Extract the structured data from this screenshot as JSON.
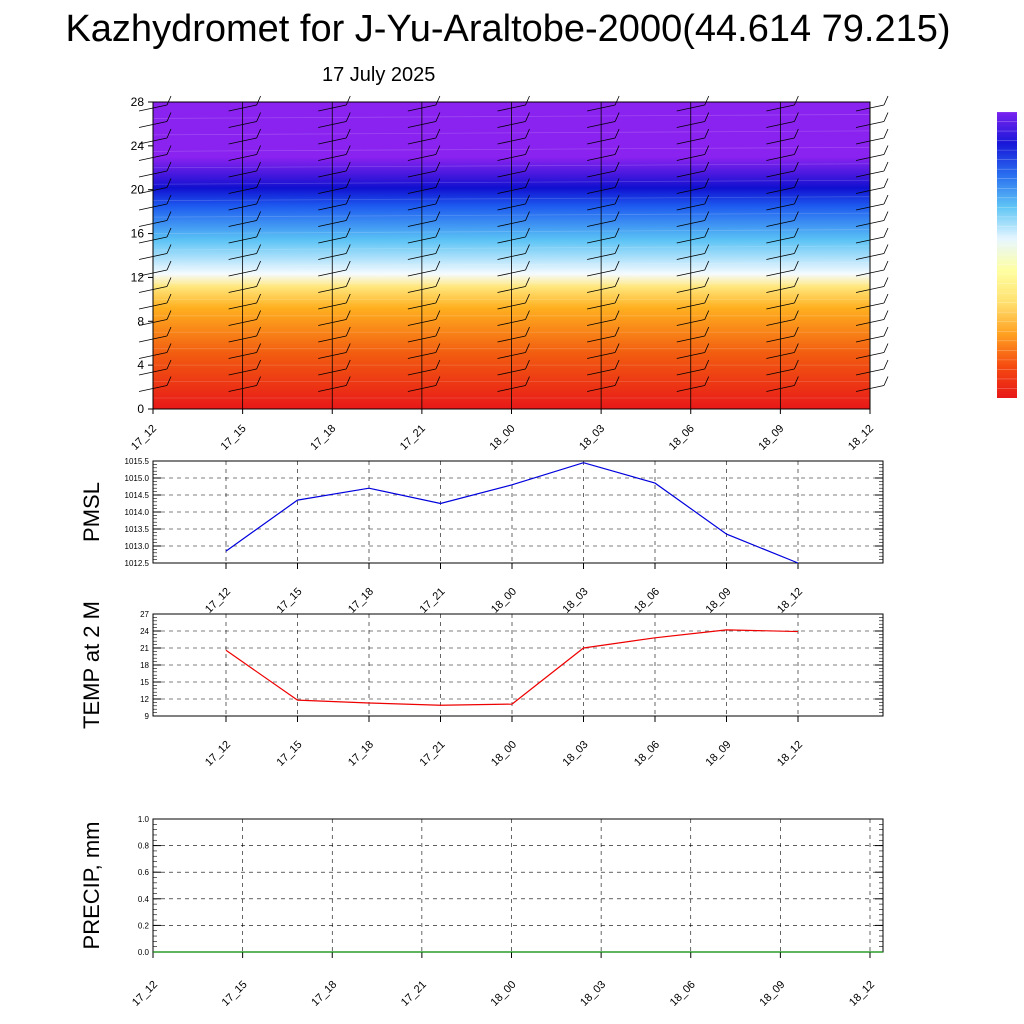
{
  "title": "Kazhydromet for J-Yu-Araltobe-2000(44.614 79.215)",
  "date": "17 July 2025",
  "chart_data": [
    {
      "type": "heatmap",
      "title": "",
      "xlabel": "",
      "ylabel": "",
      "x_ticks": [
        "17_12",
        "17_15",
        "17_18",
        "17_21",
        "18_00",
        "18_03",
        "18_06",
        "18_09",
        "18_12"
      ],
      "y_ticks": [
        "0",
        "4",
        "8",
        "12",
        "16",
        "20",
        "24",
        "28"
      ],
      "ylim": [
        0,
        28
      ],
      "colormap": [
        "#e81818",
        "#f25c10",
        "#ffb020",
        "#ffe880",
        "#f5fbff",
        "#5bc3f5",
        "#1e5cf0",
        "#1010d0",
        "#8a22f0"
      ],
      "colorbar_colors": [
        "#e81818",
        "#f54a10",
        "#ffa020",
        "#ffe070",
        "#ffffa0",
        "#e6f6ff",
        "#60c6f5",
        "#2a70f0",
        "#1818d8",
        "#7a22f0"
      ],
      "features": "warm (red) near surface to ~12, cool/blue above; wind barbs in columns"
    },
    {
      "type": "line",
      "ylabel": "PMSL",
      "x_ticks": [
        "17_12",
        "17_15",
        "17_18",
        "17_21",
        "18_00",
        "18_03",
        "18_06",
        "18_09",
        "18_12"
      ],
      "y_ticks": [
        "1012.5",
        "1013.0",
        "1013.5",
        "1014.0",
        "1014.5",
        "1015.0",
        "1015.5"
      ],
      "ylim": [
        1012.5,
        1015.5
      ],
      "grid": true,
      "series": [
        {
          "color": "#0000dd",
          "values": [
            1012.85,
            1014.35,
            1014.7,
            1014.25,
            1014.8,
            1015.45,
            1014.85,
            1013.35,
            1012.5
          ]
        }
      ]
    },
    {
      "type": "line",
      "ylabel": "TEMP at 2 M",
      "x_ticks": [
        "17_12",
        "17_15",
        "17_18",
        "17_21",
        "18_00",
        "18_03",
        "18_06",
        "18_09",
        "18_12"
      ],
      "y_ticks": [
        "9",
        "12",
        "15",
        "18",
        "21",
        "24",
        "27"
      ],
      "ylim": [
        9,
        27
      ],
      "grid": true,
      "series": [
        {
          "color": "#ee0000",
          "values": [
            20.6,
            11.8,
            11.3,
            10.9,
            11.1,
            21.0,
            22.8,
            24.2,
            23.9
          ]
        }
      ]
    },
    {
      "type": "bar",
      "ylabel": "PRECIP, mm",
      "x_ticks": [
        "17_12",
        "17_15",
        "17_18",
        "17_21",
        "18_00",
        "18_03",
        "18_06",
        "18_09",
        "18_12"
      ],
      "y_ticks": [
        "0.0",
        "0.2",
        "0.4",
        "0.6",
        "0.8",
        "1.0"
      ],
      "ylim": [
        0,
        1.0
      ],
      "grid": true,
      "series": [
        {
          "color": "#008800",
          "values": [
            0,
            0,
            0,
            0,
            0,
            0,
            0,
            0,
            0
          ]
        }
      ]
    }
  ]
}
